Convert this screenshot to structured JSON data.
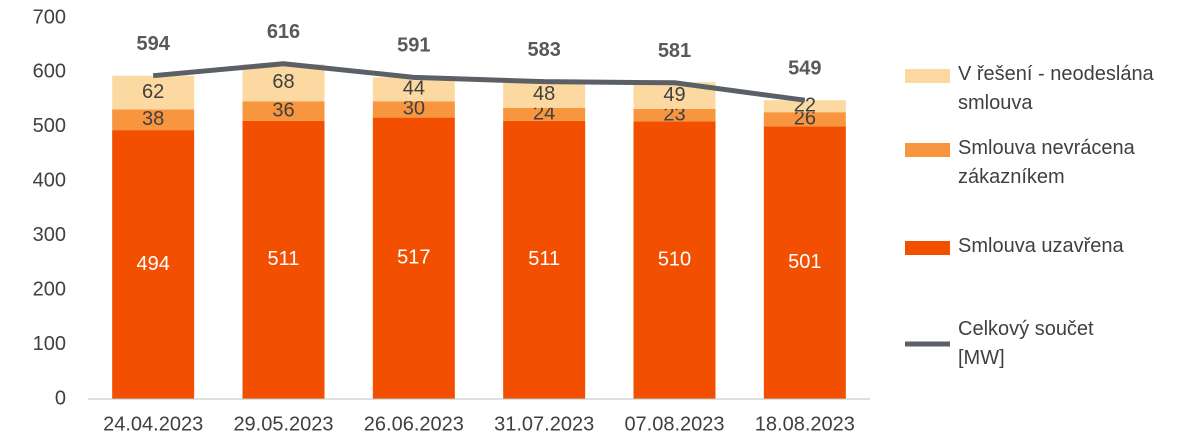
{
  "chart_data": {
    "type": "bar",
    "stacked": true,
    "categories": [
      "24.04.2023",
      "29.05.2023",
      "26.06.2023",
      "31.07.2023",
      "07.08.2023",
      "18.08.2023"
    ],
    "series": [
      {
        "name": "Smlouva uzavřena",
        "color": "#f25000",
        "label_color": "#ffffff",
        "values": [
          494,
          511,
          517,
          511,
          510,
          501
        ]
      },
      {
        "name": "Smlouva nevrácena zákazníkem",
        "color": "#f7963e",
        "label_color": "#404040",
        "values": [
          38,
          36,
          30,
          24,
          23,
          26
        ]
      },
      {
        "name": "V řešení - neodeslána smlouva",
        "color": "#fdd9a2",
        "label_color": "#404040",
        "values": [
          62,
          68,
          44,
          48,
          49,
          22
        ]
      },
      {
        "name": "Celkový součet [MW]",
        "type": "line",
        "color": "#5b5f66",
        "label_color": "#595959",
        "values": [
          594,
          616,
          591,
          583,
          581,
          549
        ]
      }
    ],
    "ylim": [
      0,
      700
    ],
    "yticks": [
      0,
      100,
      200,
      300,
      400,
      500,
      600,
      700
    ],
    "grid": false
  }
}
